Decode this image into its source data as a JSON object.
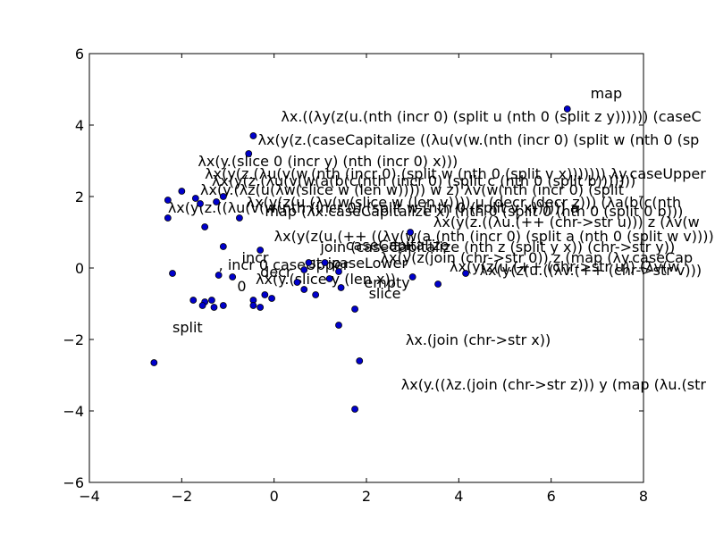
{
  "chart_data": {
    "type": "scatter",
    "title": "",
    "xlabel": "",
    "ylabel": "",
    "xlim": [
      -4,
      8
    ],
    "ylim": [
      -6,
      6
    ],
    "xticks": [
      -4,
      -2,
      0,
      2,
      4,
      6,
      8
    ],
    "yticks": [
      -6,
      -4,
      -2,
      0,
      2,
      4,
      6
    ],
    "xtick_labels": [
      "−4",
      "−2",
      "0",
      "2",
      "4",
      "6",
      "8"
    ],
    "ytick_labels": [
      "−6",
      "−4",
      "−2",
      "0",
      "2",
      "4",
      "6"
    ],
    "grid": false,
    "marker_color": "#0000cc",
    "points": [
      {
        "x": 6.35,
        "y": 4.45
      },
      {
        "x": -0.45,
        "y": 3.7
      },
      {
        "x": -0.55,
        "y": 3.2
      },
      {
        "x": -2.0,
        "y": 2.15
      },
      {
        "x": -1.25,
        "y": 1.85
      },
      {
        "x": -1.7,
        "y": 1.95
      },
      {
        "x": -1.1,
        "y": 2.0
      },
      {
        "x": -2.3,
        "y": 1.9
      },
      {
        "x": -1.6,
        "y": 1.8
      },
      {
        "x": -2.3,
        "y": 1.4
      },
      {
        "x": -0.75,
        "y": 1.4
      },
      {
        "x": -1.5,
        "y": 1.15
      },
      {
        "x": 2.95,
        "y": 1.0
      },
      {
        "x": -1.1,
        "y": 0.6
      },
      {
        "x": -0.3,
        "y": 0.5
      },
      {
        "x": 0.75,
        "y": 0.15
      },
      {
        "x": 1.1,
        "y": 0.15
      },
      {
        "x": 0.65,
        "y": -0.05
      },
      {
        "x": 1.4,
        "y": -0.1
      },
      {
        "x": -2.2,
        "y": -0.15
      },
      {
        "x": -1.2,
        "y": -0.2
      },
      {
        "x": -0.9,
        "y": -0.25
      },
      {
        "x": 3.0,
        "y": -0.25
      },
      {
        "x": 4.15,
        "y": -0.15
      },
      {
        "x": 1.2,
        "y": -0.3
      },
      {
        "x": 0.5,
        "y": -0.4
      },
      {
        "x": 3.55,
        "y": -0.45
      },
      {
        "x": 1.45,
        "y": -0.55
      },
      {
        "x": 0.65,
        "y": -0.6
      },
      {
        "x": 0.9,
        "y": -0.75
      },
      {
        "x": -0.2,
        "y": -0.75
      },
      {
        "x": -0.05,
        "y": -0.85
      },
      {
        "x": -0.45,
        "y": -0.9
      },
      {
        "x": -1.75,
        "y": -0.9
      },
      {
        "x": -1.35,
        "y": -0.9
      },
      {
        "x": -1.5,
        "y": -0.95
      },
      {
        "x": -1.55,
        "y": -1.05
      },
      {
        "x": -1.1,
        "y": -1.05
      },
      {
        "x": -1.3,
        "y": -1.1
      },
      {
        "x": -0.45,
        "y": -1.05
      },
      {
        "x": -0.3,
        "y": -1.1
      },
      {
        "x": 1.75,
        "y": -1.15
      },
      {
        "x": 1.4,
        "y": -1.6
      },
      {
        "x": -2.6,
        "y": -2.65
      },
      {
        "x": 1.85,
        "y": -2.6
      },
      {
        "x": 1.75,
        "y": -3.95
      }
    ],
    "annotations": [
      {
        "text": "map",
        "x": 6.85,
        "y": 4.75
      },
      {
        "text": "λx.((λy(z(u.(nth (incr 0) (split u (nth 0 (split z y)))))) (caseC",
        "x": 0.15,
        "y": 4.1
      },
      {
        "text": "λx(y(z.(caseCapitalize ((λu(v(w.(nth (incr 0) (split w (nth 0 (sp",
        "x": -0.35,
        "y": 3.45
      },
      {
        "text": "λx(y.(slice 0 (incr y) (nth (incr 0) x)))",
        "x": -1.65,
        "y": 2.85
      },
      {
        "text": "λx(y(z.(λu(v(w.(nth (incr 0) (split w (nth 0 (split v x))))))) λy.caseUpper",
        "x": -1.5,
        "y": 2.5
      },
      {
        "text": "λx(y(z.(λu(v(w(a(b(c(nth (incr 0) (split c (nth 0 (split b)))))))",
        "x": -1.35,
        "y": 2.3
      },
      {
        "text": "λx(y.(λz(u(λw(slice w (len w))))) w z) λv(w(nth (incr 0) (split",
        "x": -1.6,
        "y": 2.05
      },
      {
        "text": "λx(y(z(u.(λv(w(slice w (len v)))) u (decr (decr z))) (λa(b(c(nth",
        "x": -0.6,
        "y": 1.7
      },
      {
        "text": "λx(y(z.((λu(v(w(nth (incr 0) (split w (nth 0 (split v x)))))) a",
        "x": -2.3,
        "y": 1.55
      },
      {
        "text": "map (λx.caseCapitalize x) (nth 0 (split 0 (nth 0 (split 0 b)))",
        "x": -0.2,
        "y": 1.45
      },
      {
        "text": "λx(y(z.((λu.(++ (chr->str u))) z (λv(w",
        "x": 3.45,
        "y": 1.15
      },
      {
        "text": "λx(y(z(u.(++ ((λv(w(a.(nth (incr 0) (split a (nth 0 (split w v)))))))",
        "x": 0.0,
        "y": 0.75
      },
      {
        "text": "join (caseCapitalize (nth z (split y x)) (chr->str y))",
        "x": 1.0,
        "y": 0.45
      },
      {
        "text": "caseCapitalize",
        "x": 1.55,
        "y": 0.5
      },
      {
        "text": "++",
        "x": 2.5,
        "y": 0.5
      },
      {
        "text": "λx(y(z(join (chr->str 0)) z (map (λy.caseCap",
        "x": 2.3,
        "y": 0.15
      },
      {
        "text": "incr",
        "x": -0.7,
        "y": 0.15
      },
      {
        "text": "strip",
        "x": 0.75,
        "y": -0.0
      },
      {
        "text": "caseLower",
        "x": 1.25,
        "y": -0.0
      },
      {
        "text": "λx(y(z(u.(++ (chr->str u)) (λv(w",
        "x": 3.8,
        "y": -0.1
      },
      {
        "text": "λx(y(z(u.((λv.(++ (chr->str v)))",
        "x": 4.45,
        "y": -0.2
      },
      {
        "text": ", incr 0 caseUpper",
        "x": -1.2,
        "y": -0.05
      },
      {
        "text": "decr",
        "x": -0.3,
        "y": -0.25
      },
      {
        "text": "λx(y.(slice y (len x))",
        "x": -0.4,
        "y": -0.45
      },
      {
        "text": "empty",
        "x": 1.95,
        "y": -0.55
      },
      {
        "text": "0",
        "x": -0.8,
        "y": -0.65
      },
      {
        "text": "slice",
        "x": 2.05,
        "y": -0.85
      },
      {
        "text": "split",
        "x": -2.2,
        "y": -1.8
      },
      {
        "text": "λx.(join (chr->str x))",
        "x": 2.85,
        "y": -2.15
      },
      {
        "text": "λx(y.((λz.(join (chr->str z))) y (map (λu.(str",
        "x": 2.75,
        "y": -3.4
      }
    ]
  }
}
